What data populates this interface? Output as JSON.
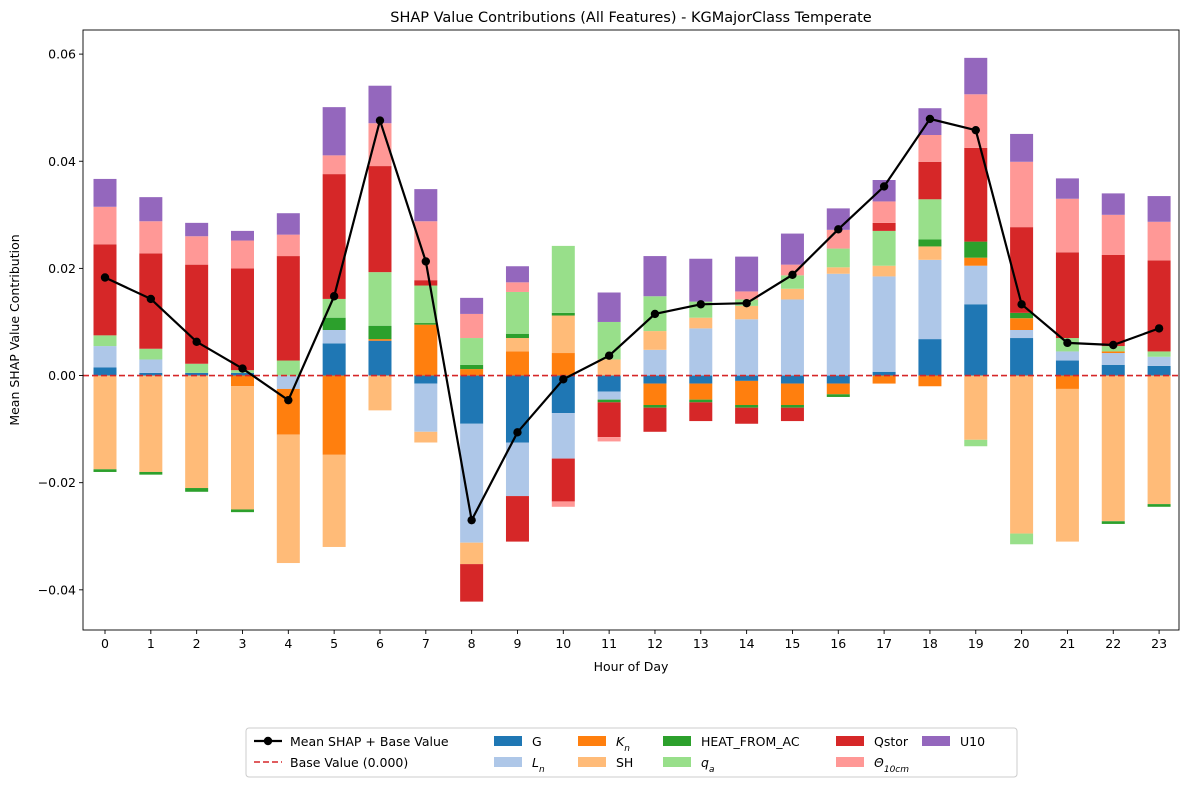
{
  "chart_data": {
    "type": "bar",
    "stacked": true,
    "title": "SHAP Value Contributions (All Features) - KGMajorClass Temperate",
    "xlabel": "Hour of Day",
    "ylabel": "Mean SHAP Value Contribution",
    "ylim": [
      -0.0475,
      0.0645
    ],
    "yticks": [
      -0.04,
      -0.02,
      0.0,
      0.02,
      0.04,
      0.06
    ],
    "ytick_labels": [
      "−0.04",
      "−0.02",
      "0.00",
      "0.02",
      "0.04",
      "0.06"
    ],
    "categories": [
      "0",
      "1",
      "2",
      "3",
      "4",
      "5",
      "6",
      "7",
      "8",
      "9",
      "10",
      "11",
      "12",
      "13",
      "14",
      "15",
      "16",
      "17",
      "18",
      "19",
      "20",
      "21",
      "22",
      "23"
    ],
    "grid": false,
    "legend_position": "bottom-center",
    "base_value": 0.0,
    "series": [
      {
        "name": "G",
        "label_main": "G",
        "label_sub": "",
        "color": "#1f77b4",
        "values": [
          0.0015,
          0.0005,
          0.0005,
          0.0005,
          0.0,
          0.006,
          0.0065,
          -0.0015,
          -0.009,
          -0.0125,
          -0.007,
          -0.003,
          -0.0015,
          -0.0015,
          -0.001,
          -0.0015,
          -0.0015,
          0.0007,
          0.0068,
          0.0133,
          0.007,
          0.0028,
          0.002,
          0.0018
        ]
      },
      {
        "name": "Ln",
        "label_main": "L",
        "label_sub": "n",
        "color": "#aec7e8",
        "values": [
          0.004,
          0.0025,
          0.0,
          0.0,
          -0.0025,
          0.0025,
          0.0,
          -0.009,
          -0.0222,
          -0.01,
          -0.0085,
          -0.0015,
          0.0048,
          0.0088,
          0.0105,
          0.0142,
          0.019,
          0.0178,
          0.0148,
          0.0072,
          0.0015,
          0.0017,
          0.0022,
          0.0017
        ]
      },
      {
        "name": "Kn",
        "label_main": "K",
        "label_sub": "n",
        "color": "#ff7f0e",
        "values": [
          0.0,
          0.0,
          0.0,
          -0.002,
          -0.0085,
          -0.0148,
          0.0003,
          0.0095,
          0.0012,
          0.0045,
          0.0042,
          0.0,
          -0.004,
          -0.003,
          -0.0045,
          -0.004,
          -0.002,
          -0.0015,
          -0.002,
          0.0015,
          0.0022,
          -0.0025,
          0.0003,
          0.0
        ]
      },
      {
        "name": "SH",
        "label_main": "SH",
        "label_sub": "",
        "color": "#ffbb78",
        "values": [
          -0.0175,
          -0.018,
          -0.021,
          -0.023,
          -0.024,
          -0.0172,
          -0.0065,
          -0.002,
          -0.004,
          0.0025,
          0.007,
          0.003,
          0.0035,
          0.002,
          0.0025,
          0.002,
          0.0012,
          0.002,
          0.0025,
          -0.012,
          -0.0295,
          -0.0285,
          -0.0272,
          -0.024
        ]
      },
      {
        "name": "HEAT_FROM_AC",
        "label_main": "HEAT_FROM_AC",
        "label_sub": "",
        "color": "#2ca02c",
        "values": [
          -0.0005,
          -0.0005,
          -0.0007,
          -0.0005,
          0.0,
          0.0023,
          0.0025,
          0.0003,
          0.0008,
          0.0008,
          0.0005,
          -0.0005,
          -0.0005,
          -0.0005,
          -0.0005,
          -0.0005,
          -0.0005,
          0.0,
          0.0013,
          0.003,
          0.001,
          0.0,
          -0.0005,
          -0.0005
        ]
      },
      {
        "name": "qa",
        "label_main": "q",
        "label_sub": "a",
        "color": "#98df8a",
        "values": [
          0.002,
          0.002,
          0.0017,
          0.0005,
          0.0028,
          0.0035,
          0.01,
          0.007,
          0.005,
          0.0078,
          0.0125,
          0.007,
          0.0065,
          0.003,
          0.0012,
          0.0025,
          0.0035,
          0.0065,
          0.0075,
          -0.0012,
          -0.002,
          0.0025,
          0.001,
          0.001
        ]
      },
      {
        "name": "Qstor",
        "label_main": "Qstor",
        "label_sub": "",
        "color": "#d62728",
        "values": [
          0.017,
          0.0178,
          0.0185,
          0.019,
          0.0195,
          0.0233,
          0.0198,
          0.001,
          -0.007,
          -0.0085,
          -0.008,
          -0.0065,
          -0.0045,
          -0.0035,
          -0.003,
          -0.0025,
          0.0,
          0.0015,
          0.007,
          0.0175,
          0.016,
          0.016,
          0.017,
          0.017
        ]
      },
      {
        "name": "Theta10cm",
        "label_main": "Θ",
        "label_sub": "10cm",
        "color": "#ff9896",
        "values": [
          0.007,
          0.006,
          0.0053,
          0.0052,
          0.004,
          0.0035,
          0.008,
          0.011,
          0.0045,
          0.0018,
          -0.001,
          -0.0008,
          0.0,
          0.0,
          0.0015,
          0.002,
          0.0035,
          0.004,
          0.005,
          0.01,
          0.0122,
          0.01,
          0.0075,
          0.0072
        ]
      },
      {
        "name": "U10",
        "label_main": "U10",
        "label_sub": "",
        "color": "#9467bd",
        "values": [
          0.0052,
          0.0045,
          0.0025,
          0.0018,
          0.004,
          0.009,
          0.007,
          0.006,
          0.003,
          0.003,
          0.0,
          0.0055,
          0.0075,
          0.008,
          0.0065,
          0.0058,
          0.004,
          0.004,
          0.005,
          0.0068,
          0.0052,
          0.0038,
          0.004,
          0.0048
        ]
      }
    ],
    "line": {
      "name": "Mean SHAP + Base Value",
      "color": "#000000",
      "values": [
        0.0183,
        0.0143,
        0.0063,
        0.0013,
        -0.0046,
        0.0148,
        0.0476,
        0.0213,
        -0.027,
        -0.0106,
        -0.0007,
        0.0037,
        0.0115,
        0.0133,
        0.0135,
        0.0188,
        0.0273,
        0.0353,
        0.0479,
        0.0458,
        0.0133,
        0.0061,
        0.0057,
        0.0088
      ]
    },
    "base_line": {
      "name": "Base Value (0.000)",
      "color": "#d62728",
      "value": 0.0
    }
  }
}
